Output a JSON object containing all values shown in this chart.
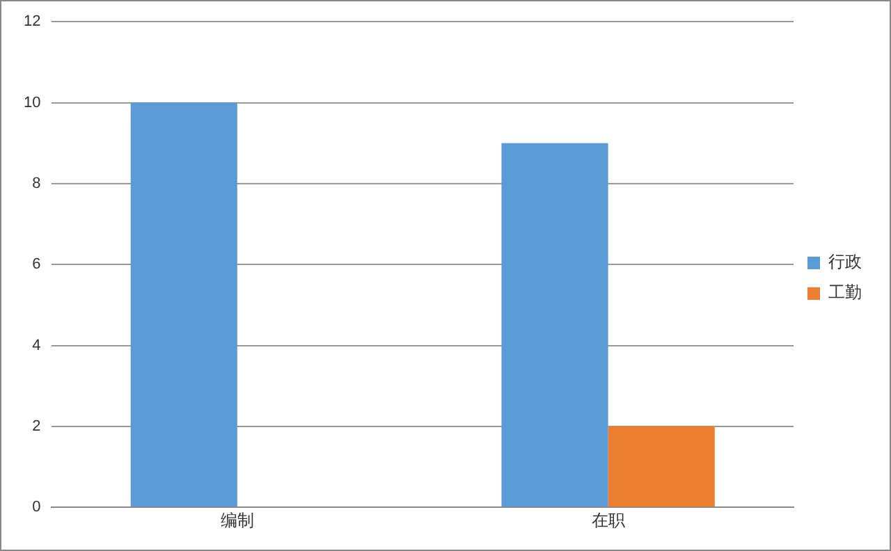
{
  "chart_data": {
    "type": "bar",
    "categories": [
      "编制",
      "在职"
    ],
    "series": [
      {
        "name": "行政",
        "color": "#5b9bd5",
        "values": [
          10,
          9
        ]
      },
      {
        "name": "工勤",
        "color": "#ed7d31",
        "values": [
          0,
          2
        ]
      }
    ],
    "ylim": [
      0,
      12
    ],
    "yticks": [
      0,
      2,
      4,
      6,
      8,
      10,
      12
    ],
    "grid": "y",
    "legend": "right"
  }
}
